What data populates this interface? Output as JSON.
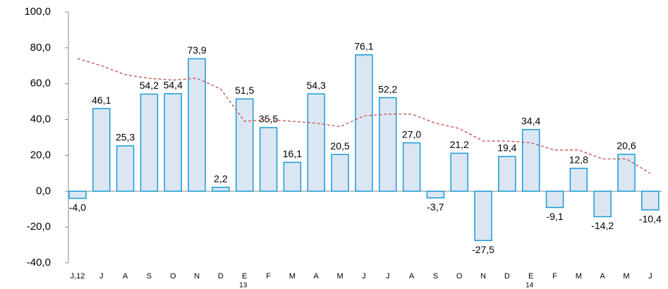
{
  "chart_data": {
    "type": "bar",
    "categories": [
      "J,12",
      "J",
      "A",
      "S",
      "O",
      "N",
      "D",
      "E",
      "F",
      "M",
      "A",
      "M",
      "J",
      "J",
      "A",
      "S",
      "O",
      "N",
      "D",
      "E",
      "F",
      "M",
      "A",
      "M",
      "J"
    ],
    "year_labels": [
      null,
      null,
      null,
      null,
      null,
      null,
      null,
      "13",
      null,
      null,
      null,
      null,
      null,
      null,
      null,
      null,
      null,
      null,
      null,
      "14",
      null,
      null,
      null,
      null,
      null
    ],
    "series": [
      {
        "type": "bar",
        "color": "#dce6f2",
        "stroke": "#1a9bd7",
        "values": [
          -4.0,
          46.1,
          25.3,
          54.2,
          54.4,
          73.9,
          2.2,
          51.5,
          35.5,
          16.1,
          54.3,
          20.5,
          76.1,
          52.2,
          27.0,
          -3.7,
          21.2,
          -27.5,
          19.4,
          34.4,
          -9.1,
          12.8,
          -14.2,
          20.6,
          -10.4
        ],
        "value_labels": [
          "-4,0",
          "46,1",
          "25,3",
          "54,2",
          "54,4",
          "73,9",
          "2,2",
          "51,5",
          "35,5",
          "16,1",
          "54,3",
          "20,5",
          "76,1",
          "52,2",
          "27,0",
          "-3,7",
          "21,2",
          "-27,5",
          "19,4",
          "34,4",
          "-9,1",
          "12,8",
          "-14,2",
          "20,6",
          "-10,4"
        ]
      },
      {
        "type": "line",
        "color": "#c0504d",
        "dashed": true,
        "values": [
          74,
          70,
          65,
          63,
          62,
          63,
          57,
          39,
          40,
          39,
          38,
          36,
          42,
          43,
          43,
          38,
          35,
          28,
          28,
          27,
          23,
          23,
          18,
          18,
          10
        ]
      }
    ],
    "ylim": [
      -40,
      100
    ],
    "yticks": [
      {
        "value": -40,
        "label": "-40,0"
      },
      {
        "value": -20,
        "label": "-20,0"
      },
      {
        "value": 0,
        "label": "0,0"
      },
      {
        "value": 20,
        "label": "20,0"
      },
      {
        "value": 40,
        "label": "40,0"
      },
      {
        "value": 60,
        "label": "60,0"
      },
      {
        "value": 80,
        "label": "80,0"
      },
      {
        "value": 100,
        "label": "100,0"
      }
    ]
  }
}
